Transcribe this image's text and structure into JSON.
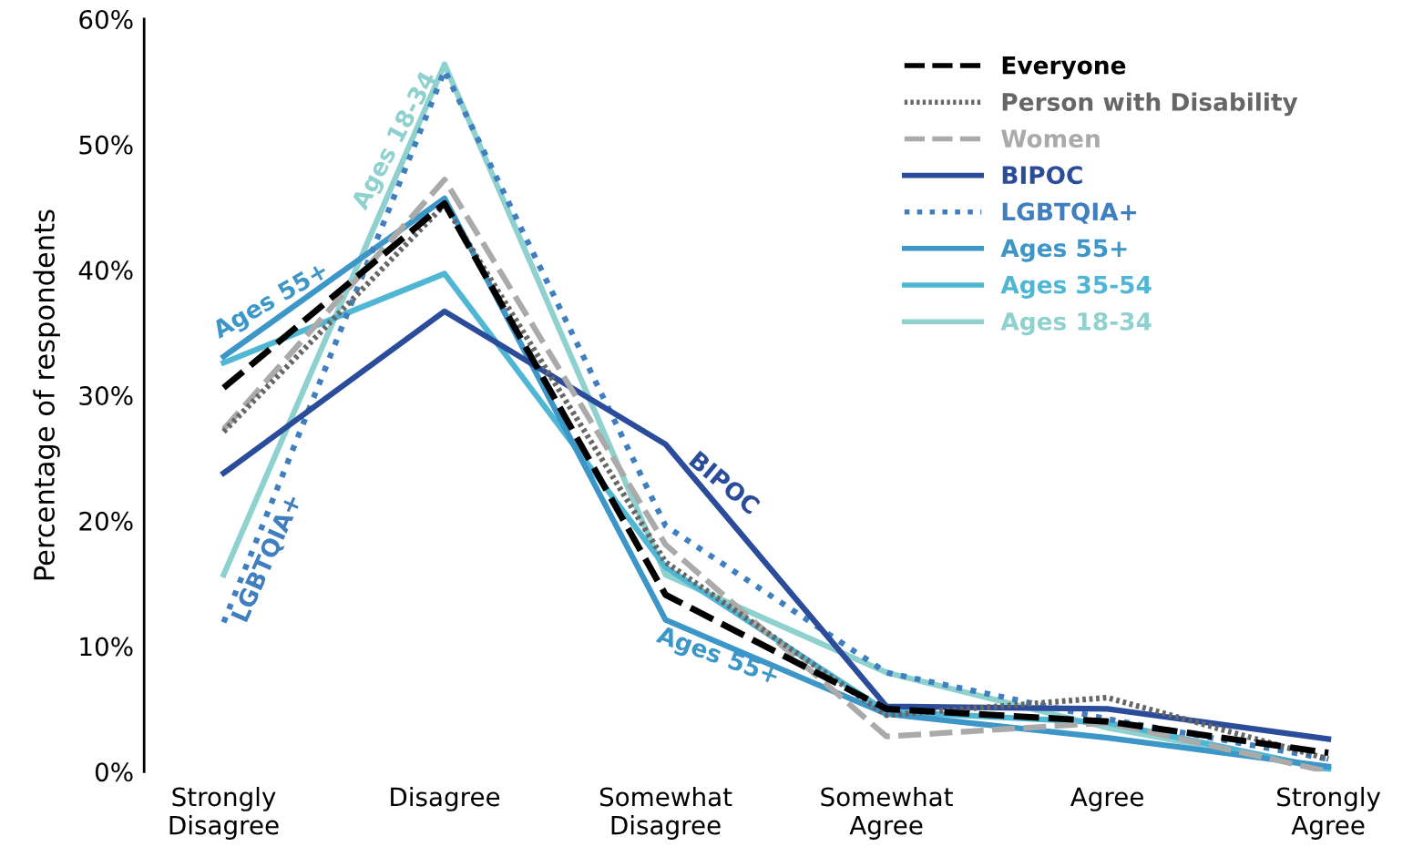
{
  "chart_data": {
    "type": "line",
    "ylabel": "Percentage of respondents",
    "categories": [
      "Strongly\nDisagree",
      "Disagree",
      "Somewhat\nDisagree",
      "Somewhat\nAgree",
      "Agree",
      "Strongly\nAgree"
    ],
    "ylim": [
      0,
      60
    ],
    "yticks": [
      {
        "value": 0,
        "label": "0%"
      },
      {
        "value": 10,
        "label": "10%"
      },
      {
        "value": 20,
        "label": "20%"
      },
      {
        "value": 30,
        "label": "30%"
      },
      {
        "value": 40,
        "label": "40%"
      },
      {
        "value": 50,
        "label": "50%"
      },
      {
        "value": 60,
        "label": "60%"
      }
    ],
    "grid": false,
    "legend": "top right",
    "marker": "none",
    "series": [
      {
        "name": "Everyone",
        "color": "#000000",
        "line_style": "dashed",
        "values": [
          30.6,
          45.3,
          14.1,
          5.0,
          4.0,
          1.5
        ]
      },
      {
        "name": "Person with Disability",
        "color": "#666666",
        "line_style": "dotted",
        "values": [
          27.1,
          45.2,
          16.7,
          4.5,
          5.9,
          1.0
        ]
      },
      {
        "name": "Women",
        "color": "#aaaaaa",
        "line_style": "dashed",
        "values": [
          27.3,
          47.2,
          18.1,
          2.8,
          3.9,
          0
        ]
      },
      {
        "name": "BIPOC",
        "color": "#2b4c9b",
        "line_style": "solid",
        "values": [
          23.8,
          36.7,
          26.1,
          5.2,
          5.0,
          2.6
        ]
      },
      {
        "name": "LGBTQIA+",
        "color": "#3f7fbf",
        "line_style": "dotted",
        "values": [
          11.9,
          55.9,
          19.6,
          7.9,
          4.2,
          1.0
        ]
      },
      {
        "name": "Ages 55+",
        "color": "#3c97c8",
        "line_style": "solid",
        "values": [
          33.1,
          45.7,
          12.1,
          4.6,
          2.7,
          0.4
        ]
      },
      {
        "name": "Ages 35-54",
        "color": "#4fb7d4",
        "line_style": "solid",
        "values": [
          32.6,
          39.7,
          16.3,
          4.8,
          3.9,
          0.2
        ]
      },
      {
        "name": "Ages 18-34",
        "color": "#8fd1cf",
        "line_style": "solid",
        "values": [
          15.7,
          56.4,
          15.7,
          7.9,
          3.5,
          0.2
        ]
      }
    ],
    "annotations": [
      "Ages 55+",
      "Ages 18-34",
      "LGBTQIA+",
      "BIPOC",
      "Ages 55+"
    ]
  }
}
